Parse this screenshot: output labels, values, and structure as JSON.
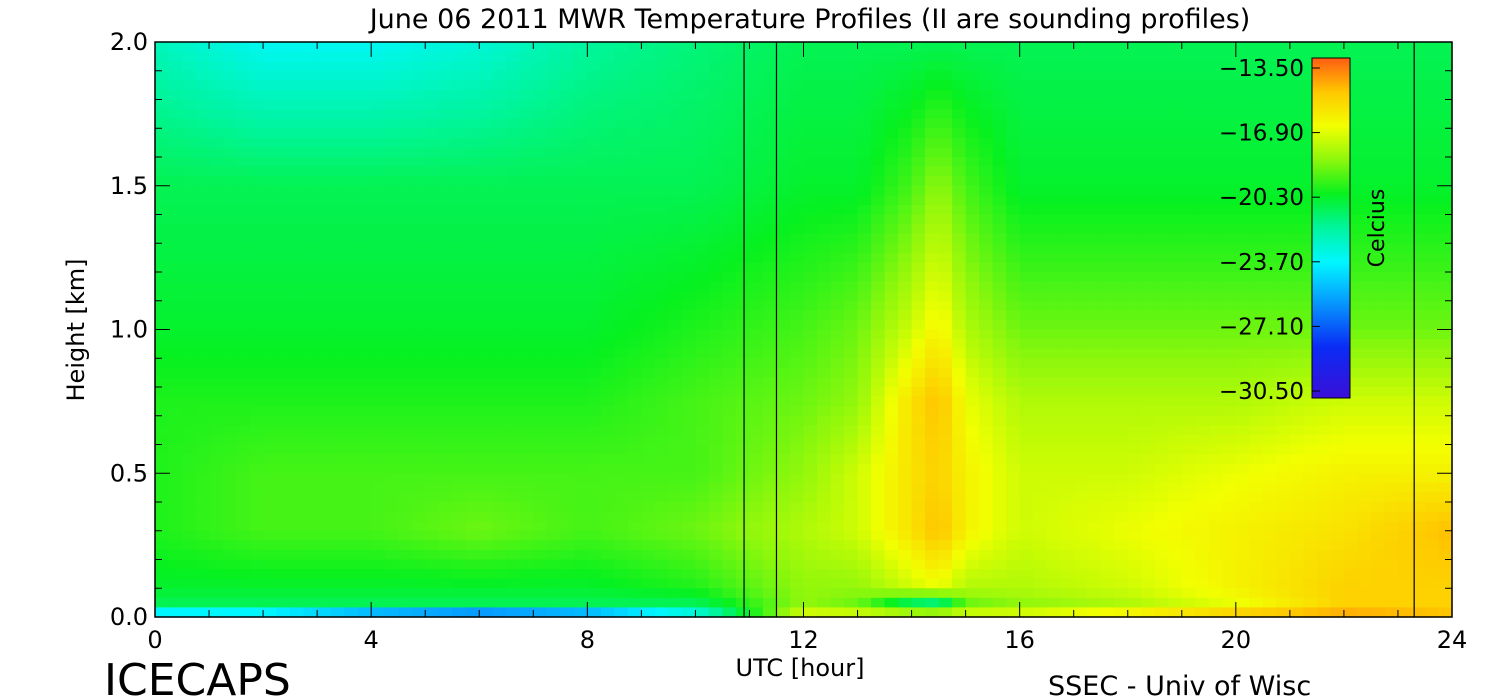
{
  "chart_data": {
    "type": "heatmap",
    "title": "June 06 2011 MWR Temperature Profiles (II are sounding profiles)",
    "xlabel": "UTC [hour]",
    "ylabel": "Height [km]",
    "xlim": [
      0,
      24
    ],
    "ylim": [
      0,
      2
    ],
    "x_ticks": [
      "0",
      "4",
      "8",
      "12",
      "16",
      "20",
      "24"
    ],
    "y_ticks": [
      "0.0",
      "0.5",
      "1.0",
      "1.5",
      "2.0"
    ],
    "colorbar": {
      "label": "Celcius",
      "range": [
        -30.5,
        -13.5
      ],
      "ticks": [
        "-13.50",
        "-16.90",
        "-20.30",
        "-23.70",
        "-27.10",
        "-30.50"
      ]
    },
    "sounding_times_utc": [
      10.9,
      11.5,
      23.3
    ],
    "temperature_grid": {
      "x_hours": [
        0,
        2,
        4,
        6,
        8,
        10,
        12,
        13,
        14,
        14.5,
        15,
        16,
        18,
        20,
        22,
        24
      ],
      "y_km": [
        0,
        0.05,
        0.1,
        0.3,
        0.5,
        0.75,
        1.0,
        1.5,
        2.0
      ],
      "values_celsius": [
        [
          -25,
          -25,
          -27,
          -28,
          -27,
          -24,
          -17,
          -17,
          -17,
          -17,
          -17,
          -17,
          -16,
          -15,
          -14.5,
          -15
        ],
        [
          -21,
          -21,
          -21,
          -21,
          -21,
          -21,
          -18.5,
          -19,
          -21,
          -21.5,
          -19,
          -18.5,
          -18,
          -17,
          -15.5,
          -15.5
        ],
        [
          -20.5,
          -20.5,
          -20.5,
          -20.5,
          -20.5,
          -20,
          -18.5,
          -18.5,
          -17.5,
          -17,
          -18,
          -18,
          -17.5,
          -16.5,
          -15.5,
          -15.5
        ],
        [
          -20,
          -19.5,
          -19.5,
          -19,
          -19.5,
          -19,
          -18,
          -17.5,
          -16,
          -15,
          -16.5,
          -17.5,
          -17,
          -16.5,
          -16,
          -15
        ],
        [
          -20,
          -19.5,
          -19.5,
          -19.5,
          -19.5,
          -19.5,
          -18.5,
          -17.5,
          -16,
          -15.5,
          -16.5,
          -17.5,
          -17.5,
          -17,
          -16.5,
          -16.5
        ],
        [
          -20,
          -20,
          -20,
          -20,
          -20,
          -19.5,
          -19,
          -18.5,
          -16,
          -15,
          -17,
          -18,
          -18,
          -18,
          -17.5,
          -17.5
        ],
        [
          -20.5,
          -20.5,
          -20.5,
          -20.5,
          -20.5,
          -20,
          -19.5,
          -19,
          -17.5,
          -16.5,
          -18,
          -19,
          -19,
          -19,
          -19,
          -19
        ],
        [
          -21,
          -21,
          -21,
          -21,
          -21,
          -21,
          -20.5,
          -20.5,
          -19.5,
          -18.5,
          -19.5,
          -20.5,
          -20.5,
          -20.5,
          -20.5,
          -20.5
        ],
        [
          -22.5,
          -23.5,
          -23.5,
          -23,
          -22,
          -21.5,
          -21,
          -21,
          -21,
          -21,
          -21,
          -21,
          -21,
          -21,
          -21,
          -21
        ]
      ]
    }
  },
  "footer": {
    "brand_left": "ICECAPS",
    "brand_right": "SSEC - Univ of Wisc"
  }
}
